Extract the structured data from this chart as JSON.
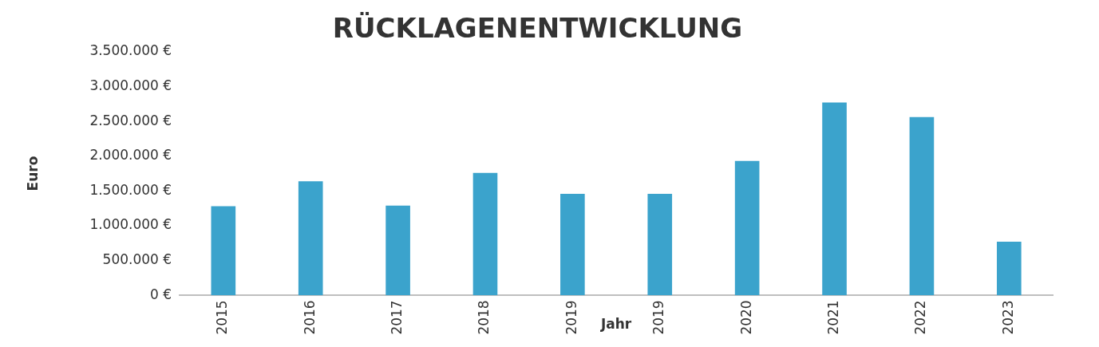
{
  "chart_data": {
    "type": "bar",
    "title": "RÜCKLAGENENTWICKLUNG",
    "xlabel": "Jahr",
    "ylabel": "Euro",
    "categories": [
      "2015",
      "2016",
      "2017",
      "2018",
      "2019",
      "2019",
      "2020",
      "2021",
      "2022",
      "2023"
    ],
    "values": [
      1280000,
      1640000,
      1290000,
      1760000,
      1460000,
      1460000,
      1930000,
      2770000,
      2560000,
      770000
    ],
    "color": "#3ba3cc",
    "ylim": [
      0,
      3500000
    ],
    "yticks": [
      {
        "value": 0,
        "label": "0 €"
      },
      {
        "value": 500000,
        "label": "500.000 €"
      },
      {
        "value": 1000000,
        "label": "1.000.000 €"
      },
      {
        "value": 1500000,
        "label": "1.500.000 €"
      },
      {
        "value": 2000000,
        "label": "2.000.000 €"
      },
      {
        "value": 2500000,
        "label": "2.500.000 €"
      },
      {
        "value": 3000000,
        "label": "3.000.000 €"
      },
      {
        "value": 3500000,
        "label": "3.500.000 €"
      }
    ],
    "grid": false,
    "legend": false
  }
}
